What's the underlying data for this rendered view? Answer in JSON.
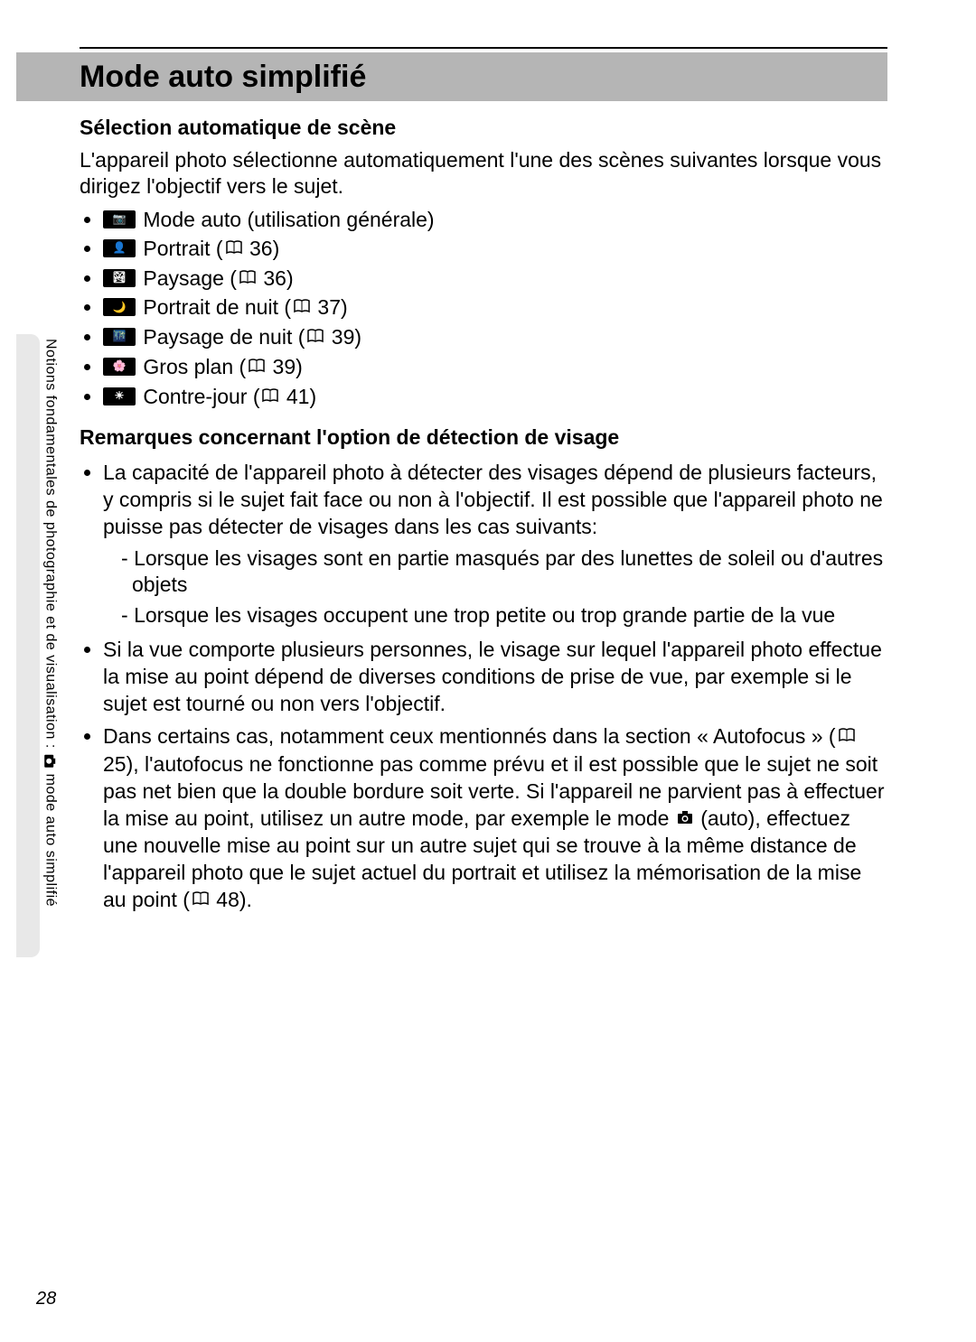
{
  "page_number": "28",
  "title": "Mode auto simplifié",
  "section1_heading": "Sélection automatique de scène",
  "section1_intro": "L'appareil photo sélectionne automatiquement l'une des scènes suivantes lorsque vous dirigez l'objectif vers le sujet.",
  "modes": [
    {
      "icon": "auto-mode-icon",
      "glyph": "📷",
      "label": " Mode auto (utilisation générale)",
      "ref": ""
    },
    {
      "icon": "portrait-mode-icon",
      "glyph": "👤",
      "label": " Portrait (",
      "ref": "36",
      "tail": ")"
    },
    {
      "icon": "landscape-mode-icon",
      "glyph": "🏞",
      "label": " Paysage (",
      "ref": "36",
      "tail": ")"
    },
    {
      "icon": "night-portrait-mode-icon",
      "glyph": "🌙",
      "label": " Portrait de nuit (",
      "ref": "37",
      "tail": ")"
    },
    {
      "icon": "night-landscape-mode-icon",
      "glyph": "🌃",
      "label": " Paysage de nuit (",
      "ref": "39",
      "tail": ")"
    },
    {
      "icon": "closeup-mode-icon",
      "glyph": "🌸",
      "label": " Gros plan (",
      "ref": "39",
      "tail": ")"
    },
    {
      "icon": "backlight-mode-icon",
      "glyph": "☀",
      "label": " Contre-jour (",
      "ref": "41",
      "tail": ")"
    }
  ],
  "section2_heading": "Remarques concernant l'option de détection de visage",
  "note1_lead": "La capacité de l'appareil photo à détecter des visages dépend de plusieurs facteurs, y compris si le sujet fait face ou non à l'objectif. Il est possible que l'appareil photo ne puisse pas détecter de visages dans les cas suivants:",
  "note1_sub1": "Lorsque les visages sont en partie masqués par des lunettes de soleil ou d'autres objets",
  "note1_sub2": "Lorsque les visages occupent une trop petite ou trop grande partie de la vue",
  "note2": "Si la vue comporte plusieurs personnes, le visage sur lequel l'appareil photo effectue la mise au point dépend de diverses conditions de prise de vue, par exemple si le sujet est tourné ou non vers l'objectif.",
  "note3_part1": "Dans certains cas, notamment ceux mentionnés dans la section « Autofocus » (",
  "note3_ref1": "25",
  "note3_part2": "), l'autofocus ne fonctionne pas comme prévu et il est possible que le sujet ne soit pas net bien que la double bordure soit verte. Si l'appareil ne parvient pas à effectuer la mise au point, utilisez un autre mode, par exemple le mode ",
  "note3_part3": " (auto), effectuez une nouvelle mise au point sur un autre sujet qui se trouve à la même distance de l'appareil photo que le sujet actuel du portrait et utilisez la mémorisation de la mise au point (",
  "note3_ref2": "48",
  "note3_part4": ").",
  "sidebar_part1": "Notions fondamentales de photographie et de visualisation : ",
  "sidebar_part2": " mode auto simplifié",
  "colors": {
    "title_band": "#b5b5b5",
    "sidebar": "#e8e8e8",
    "icon_bg": "#000000",
    "text": "#000000",
    "bg": "#ffffff"
  }
}
